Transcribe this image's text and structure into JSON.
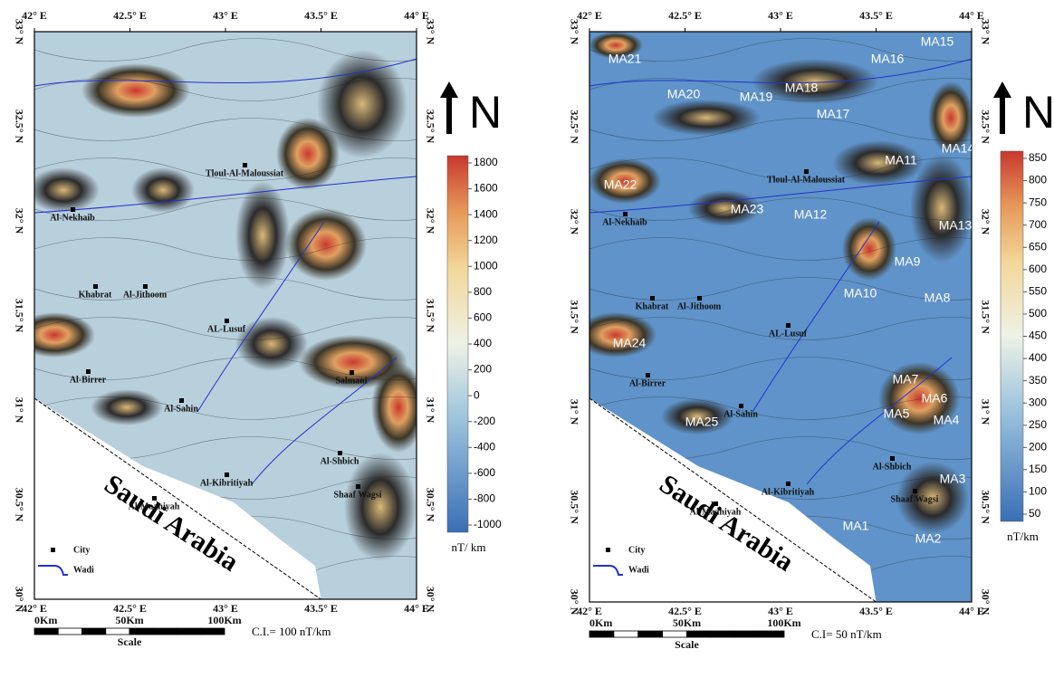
{
  "panels": [
    {
      "lon_labels": [
        "42° E",
        "42.5° E",
        "43° E",
        "43.5° E",
        "44° E"
      ],
      "lat_labels": [
        "33° N",
        "32.5° N",
        "32° N",
        "31.5° N",
        "31° N",
        "30.5° N",
        "30° N"
      ],
      "cities": [
        "Al-Nekhaib",
        "Khabrat",
        "Al-Jithoom",
        "AL-Lusuf",
        "Al-Birrer",
        "Al-Sahin",
        "Al-Maaniyah",
        "Al-Kibritiyah",
        "Al-Shbich",
        "Shaaf Wagsi",
        "Tloul-Al-Maloussiat",
        "Salmani"
      ],
      "colorbar": {
        "ticks": [
          1800,
          1600,
          1400,
          1200,
          1000,
          800,
          600,
          400,
          200,
          0,
          -200,
          -400,
          -600,
          -800,
          -1000
        ],
        "unit": "nT/ km"
      },
      "country": "Saudi Arabia",
      "legend": {
        "city": "City",
        "wadi": "Wadi"
      },
      "scale": {
        "labels": [
          "0Km",
          "50Km",
          "100Km"
        ],
        "title": "Scale"
      },
      "contour_interval": "C.I.= 100 nT/km",
      "north": "N"
    },
    {
      "lon_labels": [
        "42° E",
        "42.5° E",
        "43° E",
        "43.5° E",
        "44° E"
      ],
      "lat_labels": [
        "33° N",
        "32.5° N",
        "32° N",
        "31.5° N",
        "31° N",
        "30.5° N",
        "30° N"
      ],
      "cities": [
        "Al-Nekhaib",
        "Khabrat",
        "Al-Jithoom",
        "AL-Lusuf",
        "Al-Birrer",
        "Al-Sahin",
        "Al-Maaniyah",
        "Al-Kibritiyah",
        "Al-Shbich",
        "Shaaf Wagsi",
        "Tloul-Al-Maloussiat"
      ],
      "anomalies": [
        "MA15",
        "MA16",
        "MA21",
        "MA20",
        "MA19",
        "MA18",
        "MA17",
        "MA14",
        "MA11",
        "MA22",
        "MA23",
        "MA12",
        "MA13",
        "MA9",
        "MA10",
        "MA8",
        "MA24",
        "MA7",
        "MA6",
        "MA5",
        "MA4",
        "MA25",
        "MA3",
        "MA1",
        "MA2"
      ],
      "colorbar": {
        "ticks": [
          850,
          800,
          750,
          700,
          650,
          600,
          550,
          500,
          450,
          400,
          350,
          300,
          250,
          200,
          150,
          100,
          50
        ],
        "unit": "nT/km"
      },
      "country": "Saudi Arabia",
      "legend": {
        "city": "City",
        "wadi": "Wadi"
      },
      "scale": {
        "labels": [
          "0Km",
          "50Km",
          "100Km"
        ],
        "title": "Scale"
      },
      "contour_interval": "C.I= 50 nT/km",
      "north": "N"
    }
  ]
}
